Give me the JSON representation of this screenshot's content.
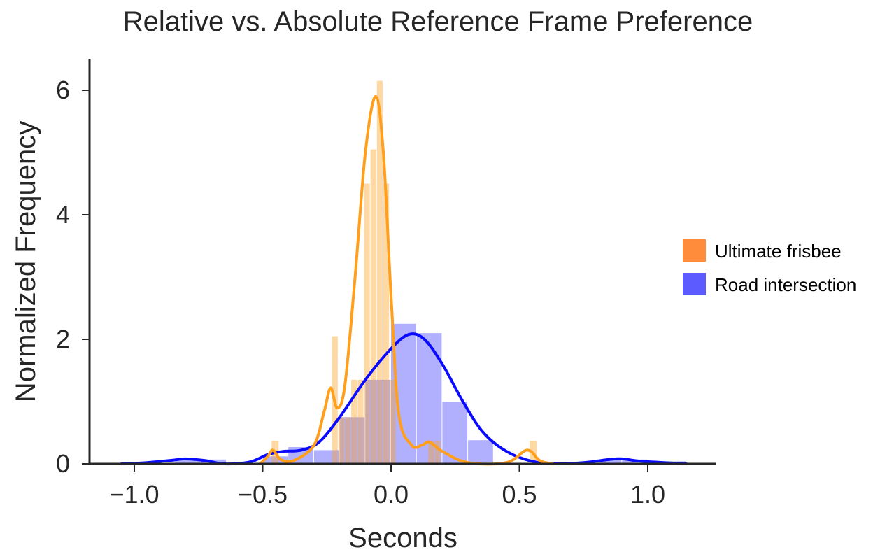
{
  "chart_data": {
    "type": "bar",
    "title": "Relative vs. Absolute Reference Frame Preference",
    "xlabel": "Seconds",
    "ylabel": "Normalized Frequency",
    "xlim": [
      -1.2,
      1.25
    ],
    "ylim": [
      0,
      6.5
    ],
    "xticks": [
      -1.0,
      -0.5,
      0.0,
      0.5,
      1.0
    ],
    "xtick_labels": [
      "−1.0",
      "−0.5",
      "0.0",
      "0.5",
      "1.0"
    ],
    "yticks": [
      0,
      2,
      4,
      6
    ],
    "ytick_labels": [
      "0",
      "2",
      "4",
      "6"
    ],
    "grid": false,
    "legend_position": "right",
    "series": [
      {
        "name": "Ultimate frisbee",
        "color": "#ff9f1c",
        "legend_color": "#ff8c3a",
        "kde_color": "#ff9f1c",
        "histogram": [
          {
            "x": -0.465,
            "width": 0.03,
            "value": 0.37
          },
          {
            "x": -0.23,
            "width": 0.025,
            "value": 2.05
          },
          {
            "x": -0.205,
            "width": 0.025,
            "value": 0.75
          },
          {
            "x": -0.18,
            "width": 0.025,
            "value": 0.75
          },
          {
            "x": -0.155,
            "width": 0.025,
            "value": 1.35
          },
          {
            "x": -0.13,
            "width": 0.025,
            "value": 1.35
          },
          {
            "x": -0.105,
            "width": 0.025,
            "value": 4.5
          },
          {
            "x": -0.08,
            "width": 0.025,
            "value": 5.05
          },
          {
            "x": -0.055,
            "width": 0.025,
            "value": 6.15
          },
          {
            "x": -0.03,
            "width": 0.025,
            "value": 4.5
          },
          {
            "x": -0.005,
            "width": 0.025,
            "value": 1.35
          },
          {
            "x": 0.145,
            "width": 0.025,
            "value": 0.37
          },
          {
            "x": 0.17,
            "width": 0.025,
            "value": 0.37
          },
          {
            "x": 0.54,
            "width": 0.03,
            "value": 0.37
          }
        ],
        "kde": [
          [
            -0.51,
            0.0
          ],
          [
            -0.48,
            0.12
          ],
          [
            -0.46,
            0.22
          ],
          [
            -0.43,
            0.07
          ],
          [
            -0.38,
            0.05
          ],
          [
            -0.3,
            0.3
          ],
          [
            -0.26,
            0.85
          ],
          [
            -0.235,
            1.22
          ],
          [
            -0.21,
            0.9
          ],
          [
            -0.18,
            1.25
          ],
          [
            -0.14,
            3.0
          ],
          [
            -0.1,
            5.0
          ],
          [
            -0.06,
            5.9
          ],
          [
            -0.03,
            5.0
          ],
          [
            0.0,
            2.7
          ],
          [
            0.03,
            0.8
          ],
          [
            0.08,
            0.3
          ],
          [
            0.12,
            0.3
          ],
          [
            0.15,
            0.35
          ],
          [
            0.2,
            0.2
          ],
          [
            0.3,
            0.02
          ],
          [
            0.45,
            0.02
          ],
          [
            0.53,
            0.22
          ],
          [
            0.58,
            0.05
          ],
          [
            0.63,
            0.0
          ]
        ]
      },
      {
        "name": "Road intersection",
        "color": "#7b7bff",
        "legend_color": "#5b5bff",
        "kde_color": "#0a0aff",
        "histogram": [
          {
            "x": -0.84,
            "width": 0.1,
            "value": 0.07
          },
          {
            "x": -0.74,
            "width": 0.1,
            "value": 0.07
          },
          {
            "x": -0.5,
            "width": 0.1,
            "value": 0.12
          },
          {
            "x": -0.4,
            "width": 0.1,
            "value": 0.27
          },
          {
            "x": -0.3,
            "width": 0.1,
            "value": 0.22
          },
          {
            "x": -0.2,
            "width": 0.1,
            "value": 0.75
          },
          {
            "x": -0.1,
            "width": 0.1,
            "value": 1.35
          },
          {
            "x": 0.0,
            "width": 0.1,
            "value": 2.25
          },
          {
            "x": 0.1,
            "width": 0.1,
            "value": 2.1
          },
          {
            "x": 0.2,
            "width": 0.1,
            "value": 1.0
          },
          {
            "x": 0.3,
            "width": 0.1,
            "value": 0.38
          },
          {
            "x": 0.8,
            "width": 0.1,
            "value": 0.07
          },
          {
            "x": 0.9,
            "width": 0.1,
            "value": 0.07
          },
          {
            "x": 1.0,
            "width": 0.1,
            "value": 0.04
          },
          {
            "x": 1.1,
            "width": 0.05,
            "value": 0.04
          }
        ],
        "kde": [
          [
            -1.05,
            0.0
          ],
          [
            -0.95,
            0.02
          ],
          [
            -0.85,
            0.06
          ],
          [
            -0.8,
            0.08
          ],
          [
            -0.72,
            0.05
          ],
          [
            -0.65,
            0.0
          ],
          [
            -0.55,
            0.03
          ],
          [
            -0.48,
            0.15
          ],
          [
            -0.42,
            0.2
          ],
          [
            -0.35,
            0.22
          ],
          [
            -0.28,
            0.35
          ],
          [
            -0.2,
            0.75
          ],
          [
            -0.1,
            1.35
          ],
          [
            0.0,
            1.85
          ],
          [
            0.07,
            2.08
          ],
          [
            0.13,
            2.0
          ],
          [
            0.2,
            1.6
          ],
          [
            0.28,
            1.0
          ],
          [
            0.36,
            0.5
          ],
          [
            0.45,
            0.2
          ],
          [
            0.55,
            0.04
          ],
          [
            0.65,
            0.0
          ],
          [
            0.75,
            0.02
          ],
          [
            0.85,
            0.07
          ],
          [
            0.9,
            0.08
          ],
          [
            0.98,
            0.04
          ],
          [
            1.15,
            0.0
          ]
        ]
      }
    ]
  }
}
